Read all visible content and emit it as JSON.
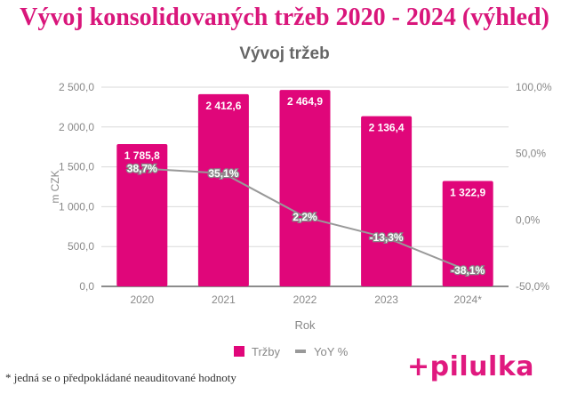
{
  "header": {
    "title": "Vývoj konsolidovaných tržeb 2020 - 2024 (výhled)"
  },
  "footnote": "* jedná se o předpokládané neauditované hodnoty",
  "logo": {
    "text": "+pilulka",
    "color": "#e0197f"
  },
  "chart_data": {
    "type": "bar+line",
    "title": "Vývoj tržeb",
    "xlabel": "Rok",
    "ylabel": "m CZK",
    "categories": [
      "2020",
      "2021",
      "2022",
      "2023",
      "2024*"
    ],
    "ylim": [
      0,
      2500
    ],
    "y_ticks": [
      "0,0",
      "500,0",
      "1 000,0",
      "1 500,0",
      "2 000,0",
      "2 500,0"
    ],
    "y2lim": [
      -50,
      100
    ],
    "y2_ticks": [
      "-50,0%",
      "0,0%",
      "50,0%",
      "100,0%"
    ],
    "grid": true,
    "legend": "bottom",
    "series": [
      {
        "name": "Tržby",
        "type": "bar",
        "axis": "left",
        "color": "#e0067a",
        "values": [
          1785.8,
          2412.6,
          2464.9,
          2136.4,
          1322.9
        ],
        "labels": [
          "1 785,8",
          "2 412,6",
          "2 464,9",
          "2 136,4",
          "1 322,9"
        ]
      },
      {
        "name": "YoY %",
        "type": "line",
        "axis": "right",
        "color": "#999999",
        "values": [
          38.7,
          35.1,
          2.2,
          -13.3,
          -38.1
        ],
        "labels": [
          "38,7%",
          "35,1%",
          "2,2%",
          "-13,3%",
          "-38,1%"
        ]
      }
    ]
  }
}
